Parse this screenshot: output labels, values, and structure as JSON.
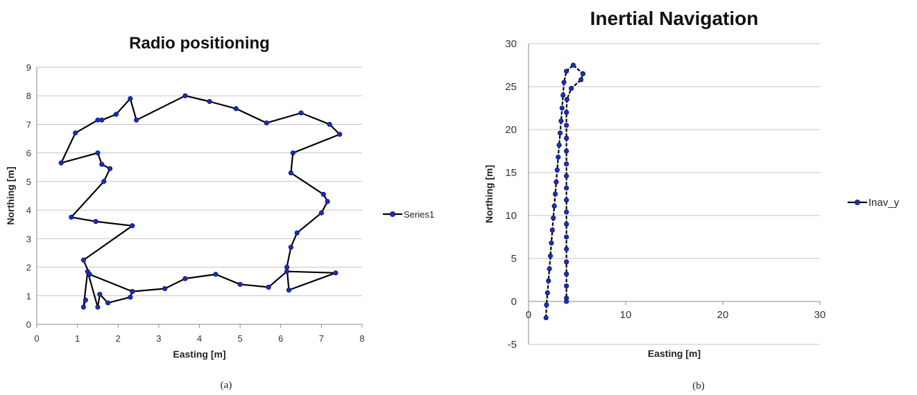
{
  "chart_data": [
    {
      "type": "line",
      "title": "Radio positioning",
      "xlabel": "Easting [m]",
      "ylabel": "Northing [m]",
      "xlim": [
        0,
        8
      ],
      "ylim": [
        0,
        9
      ],
      "xticks": [
        "0",
        "1",
        "2",
        "3",
        "4",
        "5",
        "6",
        "7",
        "8"
      ],
      "yticks": [
        "0",
        "1",
        "2",
        "3",
        "4",
        "5",
        "6",
        "7",
        "8",
        "9"
      ],
      "grid": "horizontal",
      "legend_placement": "right",
      "caption": "(a)",
      "series": [
        {
          "name": "Series1",
          "color": "#1a2eb8",
          "points": [
            [
              1.2,
              0.85
            ],
            [
              1.15,
              0.6
            ],
            [
              1.25,
              1.85
            ],
            [
              1.5,
              0.6
            ],
            [
              1.55,
              1.05
            ],
            [
              1.75,
              0.75
            ],
            [
              2.3,
              0.95
            ],
            [
              2.35,
              1.15
            ],
            [
              3.15,
              1.25
            ],
            [
              3.65,
              1.6
            ],
            [
              4.4,
              1.75
            ],
            [
              5.0,
              1.4
            ],
            [
              5.7,
              1.3
            ],
            [
              6.15,
              1.85
            ],
            [
              7.35,
              1.8
            ],
            [
              6.2,
              1.2
            ],
            [
              6.15,
              2.0
            ],
            [
              6.25,
              2.7
            ],
            [
              6.4,
              3.2
            ],
            [
              7.0,
              3.9
            ],
            [
              7.15,
              4.3
            ],
            [
              7.05,
              4.55
            ],
            [
              6.25,
              5.3
            ],
            [
              6.3,
              6.0
            ],
            [
              7.45,
              6.65
            ],
            [
              7.2,
              7.0
            ],
            [
              6.5,
              7.4
            ],
            [
              5.65,
              7.05
            ],
            [
              4.9,
              7.55
            ],
            [
              4.25,
              7.8
            ],
            [
              3.65,
              8.0
            ],
            [
              2.45,
              7.15
            ],
            [
              2.3,
              7.9
            ],
            [
              1.95,
              7.35
            ],
            [
              1.6,
              7.15
            ],
            [
              1.5,
              7.15
            ],
            [
              0.95,
              6.7
            ],
            [
              0.6,
              5.65
            ],
            [
              1.5,
              6.0
            ],
            [
              1.6,
              5.6
            ],
            [
              1.8,
              5.45
            ],
            [
              1.65,
              5.0
            ],
            [
              0.85,
              3.75
            ],
            [
              1.45,
              3.6
            ],
            [
              2.35,
              3.45
            ],
            [
              1.15,
              2.25
            ],
            [
              1.3,
              1.75
            ],
            [
              2.35,
              1.15
            ]
          ]
        }
      ]
    },
    {
      "type": "line",
      "title": "Inertial Navigation",
      "xlabel": "Easting [m]",
      "ylabel": "Northing [m]",
      "xlim": [
        0,
        30
      ],
      "ylim": [
        -5,
        30
      ],
      "xticks": [
        "0",
        "10",
        "20",
        "30"
      ],
      "yticks": [
        "-5",
        "0",
        "5",
        "10",
        "15",
        "20",
        "25",
        "30"
      ],
      "grid": "horizontal",
      "legend_placement": "right",
      "caption": "(b)",
      "series": [
        {
          "name": "Inav_y",
          "color": "#1a2eb8",
          "points": [
            [
              1.8,
              -1.9
            ],
            [
              1.85,
              -0.4
            ],
            [
              1.95,
              1.0
            ],
            [
              2.05,
              2.4
            ],
            [
              2.15,
              3.8
            ],
            [
              2.25,
              5.3
            ],
            [
              2.35,
              6.8
            ],
            [
              2.45,
              8.3
            ],
            [
              2.55,
              9.7
            ],
            [
              2.65,
              11.1
            ],
            [
              2.75,
              12.5
            ],
            [
              2.85,
              13.9
            ],
            [
              2.95,
              15.3
            ],
            [
              3.05,
              16.8
            ],
            [
              3.15,
              18.2
            ],
            [
              3.25,
              19.6
            ],
            [
              3.35,
              21.0
            ],
            [
              3.45,
              22.5
            ],
            [
              3.55,
              24.0
            ],
            [
              3.65,
              25.5
            ],
            [
              3.9,
              26.8
            ],
            [
              4.6,
              27.5
            ],
            [
              5.6,
              26.5
            ],
            [
              5.4,
              25.8
            ],
            [
              4.4,
              24.8
            ],
            [
              3.95,
              23.5
            ],
            [
              3.9,
              22.0
            ],
            [
              3.9,
              20.5
            ],
            [
              3.9,
              19.0
            ],
            [
              3.9,
              17.5
            ],
            [
              3.9,
              16.0
            ],
            [
              3.9,
              14.6
            ],
            [
              3.9,
              13.2
            ],
            [
              3.9,
              11.8
            ],
            [
              3.9,
              10.4
            ],
            [
              3.9,
              9.0
            ],
            [
              3.9,
              7.5
            ],
            [
              3.9,
              6.1
            ],
            [
              3.9,
              4.6
            ],
            [
              3.9,
              3.2
            ],
            [
              3.9,
              1.8
            ],
            [
              3.9,
              0.4
            ],
            [
              3.9,
              0.0
            ]
          ]
        }
      ]
    }
  ]
}
